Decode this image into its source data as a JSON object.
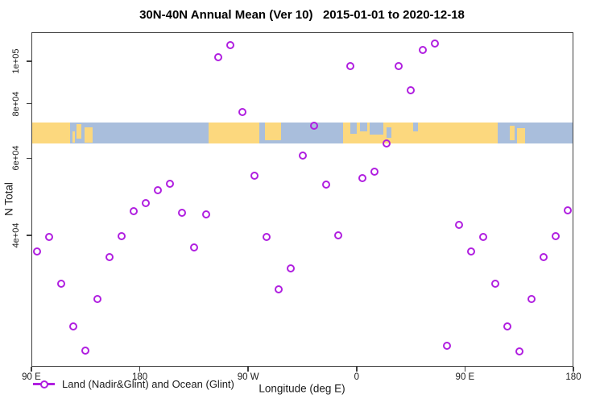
{
  "chart_data": {
    "type": "scatter",
    "title": "30N-40N Annual Mean (Ver 10)   2015-01-01 to 2020-12-18",
    "xlabel": "Longitude (deg E)",
    "ylabel": "N Total",
    "x_axis": {
      "start_deg_east": 90,
      "end_deg_east": 540,
      "note": "longitude increases eastward, wrapping past the dateline and prime meridian (450 degrees shown)"
    },
    "x_ticks": [
      {
        "value": 90,
        "label": "90 E"
      },
      {
        "value": 180,
        "label": "180"
      },
      {
        "value": 270,
        "label": "90 W"
      },
      {
        "value": 360,
        "label": "0"
      },
      {
        "value": 450,
        "label": "90 E"
      },
      {
        "value": 540,
        "label": "180"
      }
    ],
    "y_scale": "log",
    "ylim": [
      20000,
      116500
    ],
    "y_ticks": [
      {
        "value": 100000,
        "label": "1e+05"
      },
      {
        "value": 80000,
        "label": "8e+04"
      },
      {
        "value": 60000,
        "label": "6e+04"
      },
      {
        "value": 40000,
        "label": "4e+04"
      }
    ],
    "grid": false,
    "legend": {
      "position": "bottom-left-inside",
      "label": "Land (Nadir&Glint) and Ocean (Glint)"
    },
    "colors": {
      "marker": "#B01FE0",
      "ocean": "#A9BEDC",
      "land": "#FCD87E",
      "axis": "#3f3f3f"
    },
    "series": [
      {
        "name": "Land (Nadir&Glint) and Ocean (Glint)",
        "marker": "open-circle",
        "points": [
          [
            95,
            36700
          ],
          [
            105,
            39600
          ],
          [
            115,
            31000
          ],
          [
            125,
            24800
          ],
          [
            135,
            21800
          ],
          [
            145,
            28600
          ],
          [
            155,
            35700
          ],
          [
            165,
            39800
          ],
          [
            175,
            45400
          ],
          [
            185,
            47400
          ],
          [
            195,
            50700
          ],
          [
            205,
            52500
          ],
          [
            215,
            45000
          ],
          [
            225,
            37500
          ],
          [
            235,
            44700
          ],
          [
            245,
            102000
          ],
          [
            255,
            109000
          ],
          [
            265,
            76500
          ],
          [
            275,
            54700
          ],
          [
            285,
            39600
          ],
          [
            295,
            30100
          ],
          [
            305,
            33600
          ],
          [
            315,
            60900
          ],
          [
            325,
            71200
          ],
          [
            335,
            52300
          ],
          [
            345,
            40000
          ],
          [
            355,
            97500
          ],
          [
            365,
            54100
          ],
          [
            375,
            55900
          ],
          [
            385,
            64900
          ],
          [
            395,
            97500
          ],
          [
            405,
            85800
          ],
          [
            415,
            106000
          ],
          [
            425,
            110000
          ],
          [
            435,
            22400
          ],
          [
            445,
            42300
          ],
          [
            455,
            36700
          ],
          [
            465,
            39600
          ],
          [
            475,
            31000
          ],
          [
            485,
            24800
          ],
          [
            495,
            21700
          ],
          [
            505,
            28600
          ],
          [
            515,
            35700
          ],
          [
            525,
            39800
          ],
          [
            535,
            45600
          ]
        ]
      }
    ],
    "map_band": {
      "description": "30N-40N world map strip: yellow land over blue ocean",
      "value_top": 72500,
      "value_bottom": 65000,
      "land_segments": [
        {
          "from": 90,
          "to": 122
        },
        {
          "from": 124,
          "to": 126,
          "t": 0.45,
          "b": 1
        },
        {
          "from": 127.5,
          "to": 131.5,
          "t": 0.1,
          "b": 0.8
        },
        {
          "from": 134,
          "to": 140.5,
          "t": 0.25,
          "b": 1
        },
        {
          "from": 237,
          "to": 279.5
        },
        {
          "from": 284,
          "to": 297,
          "t": 0,
          "b": 0.85
        },
        {
          "from": 349,
          "to": 477
        },
        {
          "from": 487,
          "to": 491,
          "t": 0.15,
          "b": 0.85
        },
        {
          "from": 493.5,
          "to": 500,
          "t": 0.3,
          "b": 1
        }
      ],
      "ocean_notches": [
        {
          "from": 355,
          "to": 360,
          "t": 0,
          "b": 0.55
        },
        {
          "from": 363,
          "to": 369,
          "t": 0,
          "b": 0.45
        },
        {
          "from": 371,
          "to": 382,
          "t": 0,
          "b": 0.6
        },
        {
          "from": 385,
          "to": 389,
          "t": 0.25,
          "b": 0.75
        },
        {
          "from": 407,
          "to": 411,
          "t": 0,
          "b": 0.45
        },
        {
          "from": 478,
          "to": 487,
          "t": 0,
          "b": 0.55
        }
      ]
    }
  }
}
